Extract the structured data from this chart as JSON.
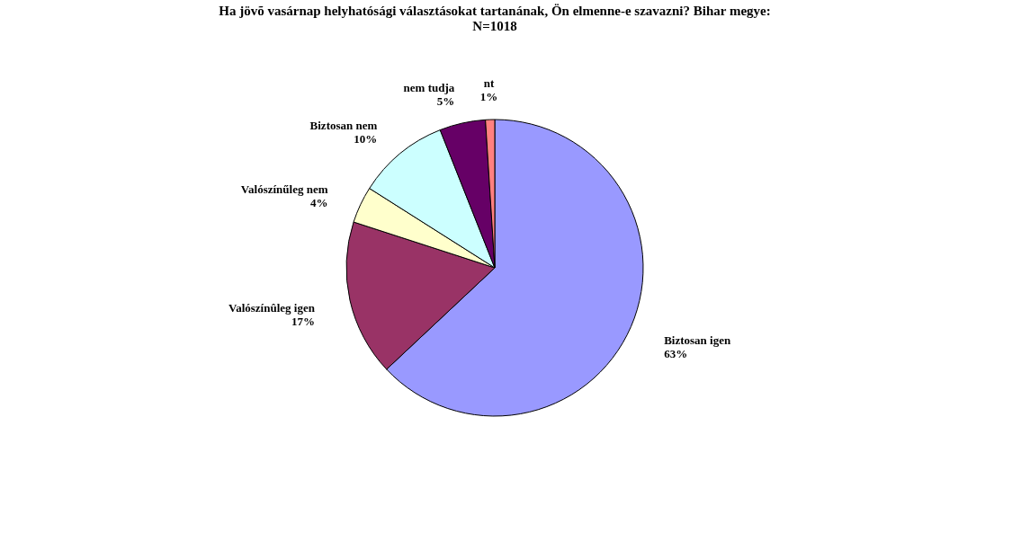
{
  "chart_data": {
    "type": "pie",
    "title": "Ha jövõ vasárnap helyhatósági választásokat tartanának, Ön elmenne-e szavazni? Bihar megye:\nN=1018",
    "categories": [
      "Biztosan igen",
      "Valószínûleg igen",
      "Valószínűleg nem",
      "Biztosan nem",
      "nem tudja",
      "nt"
    ],
    "values": [
      63,
      17,
      4,
      10,
      5,
      1
    ],
    "colors": [
      "#9999ff",
      "#993366",
      "#ffffcc",
      "#ccffff",
      "#660066",
      "#ff8080"
    ],
    "value_labels": [
      "63%",
      "17%",
      "4%",
      "10%",
      "5%",
      "1%"
    ],
    "legend": false
  }
}
